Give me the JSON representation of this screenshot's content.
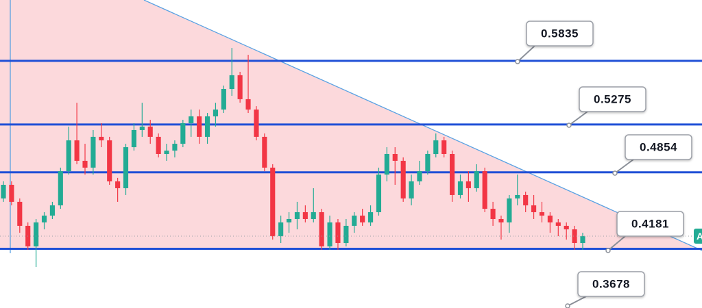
{
  "chart_data": {
    "type": "candlestick",
    "ylim": [
      0.366,
      0.637
    ],
    "up_color": "#22ab94",
    "down_color": "#f23645",
    "level_color": "#1f4fd6",
    "levels": [
      {
        "value": 0.5835,
        "line": true
      },
      {
        "value": 0.5275,
        "line": true
      },
      {
        "value": 0.4854,
        "line": true
      },
      {
        "value": 0.4181,
        "line": true
      },
      {
        "value": 0.3678,
        "line": false
      }
    ],
    "price_tag": "A",
    "ohlc": [
      [
        0.4624,
        0.4775,
        0.4594,
        0.4744
      ],
      [
        0.4744,
        0.4775,
        0.4563,
        0.4594
      ],
      [
        0.4594,
        0.4624,
        0.4322,
        0.4383
      ],
      [
        0.4383,
        0.4413,
        0.4172,
        0.4202
      ],
      [
        0.4202,
        0.4443,
        0.4021,
        0.4413
      ],
      [
        0.4413,
        0.4503,
        0.4352,
        0.4473
      ],
      [
        0.4473,
        0.4594,
        0.4443,
        0.4563
      ],
      [
        0.4563,
        0.4895,
        0.4533,
        0.4864
      ],
      [
        0.4864,
        0.5256,
        0.4834,
        0.5135
      ],
      [
        0.5135,
        0.5466,
        0.4925,
        0.4955
      ],
      [
        0.4955,
        0.5105,
        0.4834,
        0.4895
      ],
      [
        0.4895,
        0.5226,
        0.4834,
        0.5166
      ],
      [
        0.5166,
        0.5286,
        0.5075,
        0.5135
      ],
      [
        0.5135,
        0.5166,
        0.4744,
        0.4774
      ],
      [
        0.4774,
        0.4805,
        0.4594,
        0.4714
      ],
      [
        0.4714,
        0.5105,
        0.4654,
        0.5075
      ],
      [
        0.5075,
        0.5286,
        0.5045,
        0.5226
      ],
      [
        0.5226,
        0.5466,
        0.5166,
        0.5256
      ],
      [
        0.5256,
        0.5316,
        0.5105,
        0.5166
      ],
      [
        0.5166,
        0.5196,
        0.4985,
        0.5015
      ],
      [
        0.5015,
        0.5105,
        0.4955,
        0.5045
      ],
      [
        0.5045,
        0.5135,
        0.4985,
        0.5105
      ],
      [
        0.5105,
        0.5316,
        0.5075,
        0.5286
      ],
      [
        0.5286,
        0.5406,
        0.5166,
        0.5346
      ],
      [
        0.5346,
        0.5406,
        0.5105,
        0.5166
      ],
      [
        0.5166,
        0.5376,
        0.5105,
        0.5346
      ],
      [
        0.5346,
        0.5466,
        0.5256,
        0.5406
      ],
      [
        0.5406,
        0.5617,
        0.5376,
        0.5587
      ],
      [
        0.5587,
        0.5948,
        0.5527,
        0.5708
      ],
      [
        0.5708,
        0.5738,
        0.5467,
        0.5497
      ],
      [
        0.5497,
        0.5888,
        0.5376,
        0.5406
      ],
      [
        0.5406,
        0.5436,
        0.5135,
        0.5166
      ],
      [
        0.5166,
        0.5196,
        0.4864,
        0.4895
      ],
      [
        0.4895,
        0.4925,
        0.4262,
        0.4292
      ],
      [
        0.4292,
        0.4473,
        0.4232,
        0.4413
      ],
      [
        0.4413,
        0.4503,
        0.4322,
        0.4443
      ],
      [
        0.4443,
        0.4594,
        0.4352,
        0.4503
      ],
      [
        0.4503,
        0.4563,
        0.4413,
        0.4443
      ],
      [
        0.4443,
        0.4714,
        0.4413,
        0.4503
      ],
      [
        0.4503,
        0.4533,
        0.4172,
        0.4202
      ],
      [
        0.4202,
        0.4473,
        0.4172,
        0.4413
      ],
      [
        0.4413,
        0.4443,
        0.4172,
        0.4232
      ],
      [
        0.4232,
        0.4443,
        0.4202,
        0.4383
      ],
      [
        0.4383,
        0.4503,
        0.4322,
        0.4473
      ],
      [
        0.4473,
        0.4533,
        0.4383,
        0.4413
      ],
      [
        0.4413,
        0.4563,
        0.4383,
        0.4503
      ],
      [
        0.4503,
        0.4895,
        0.4473,
        0.4834
      ],
      [
        0.4834,
        0.5075,
        0.4774,
        0.5015
      ],
      [
        0.5015,
        0.5075,
        0.4744,
        0.4955
      ],
      [
        0.4955,
        0.4985,
        0.4594,
        0.4624
      ],
      [
        0.4624,
        0.4834,
        0.4563,
        0.4774
      ],
      [
        0.4774,
        0.4955,
        0.4744,
        0.4864
      ],
      [
        0.4864,
        0.5045,
        0.4834,
        0.5015
      ],
      [
        0.5015,
        0.5196,
        0.4985,
        0.5135
      ],
      [
        0.5135,
        0.5166,
        0.4985,
        0.5015
      ],
      [
        0.5015,
        0.5045,
        0.4594,
        0.4654
      ],
      [
        0.4654,
        0.4834,
        0.4624,
        0.4774
      ],
      [
        0.4774,
        0.4864,
        0.4594,
        0.4714
      ],
      [
        0.4714,
        0.4925,
        0.4684,
        0.4864
      ],
      [
        0.4864,
        0.4895,
        0.4503,
        0.4533
      ],
      [
        0.4533,
        0.4594,
        0.4383,
        0.4443
      ],
      [
        0.4443,
        0.4473,
        0.4262,
        0.4413
      ],
      [
        0.4413,
        0.4654,
        0.4322,
        0.4624
      ],
      [
        0.4624,
        0.4834,
        0.4563,
        0.4654
      ],
      [
        0.4654,
        0.4684,
        0.4503,
        0.4563
      ],
      [
        0.4563,
        0.4654,
        0.4443,
        0.4503
      ],
      [
        0.4503,
        0.4594,
        0.4413,
        0.4473
      ],
      [
        0.4473,
        0.4503,
        0.4322,
        0.4413
      ],
      [
        0.4413,
        0.4443,
        0.4292,
        0.4383
      ],
      [
        0.4383,
        0.4413,
        0.4262,
        0.4352
      ],
      [
        0.4352,
        0.4383,
        0.4172,
        0.4232
      ],
      [
        0.4232,
        0.4322,
        0.4172,
        0.4292
      ]
    ]
  }
}
